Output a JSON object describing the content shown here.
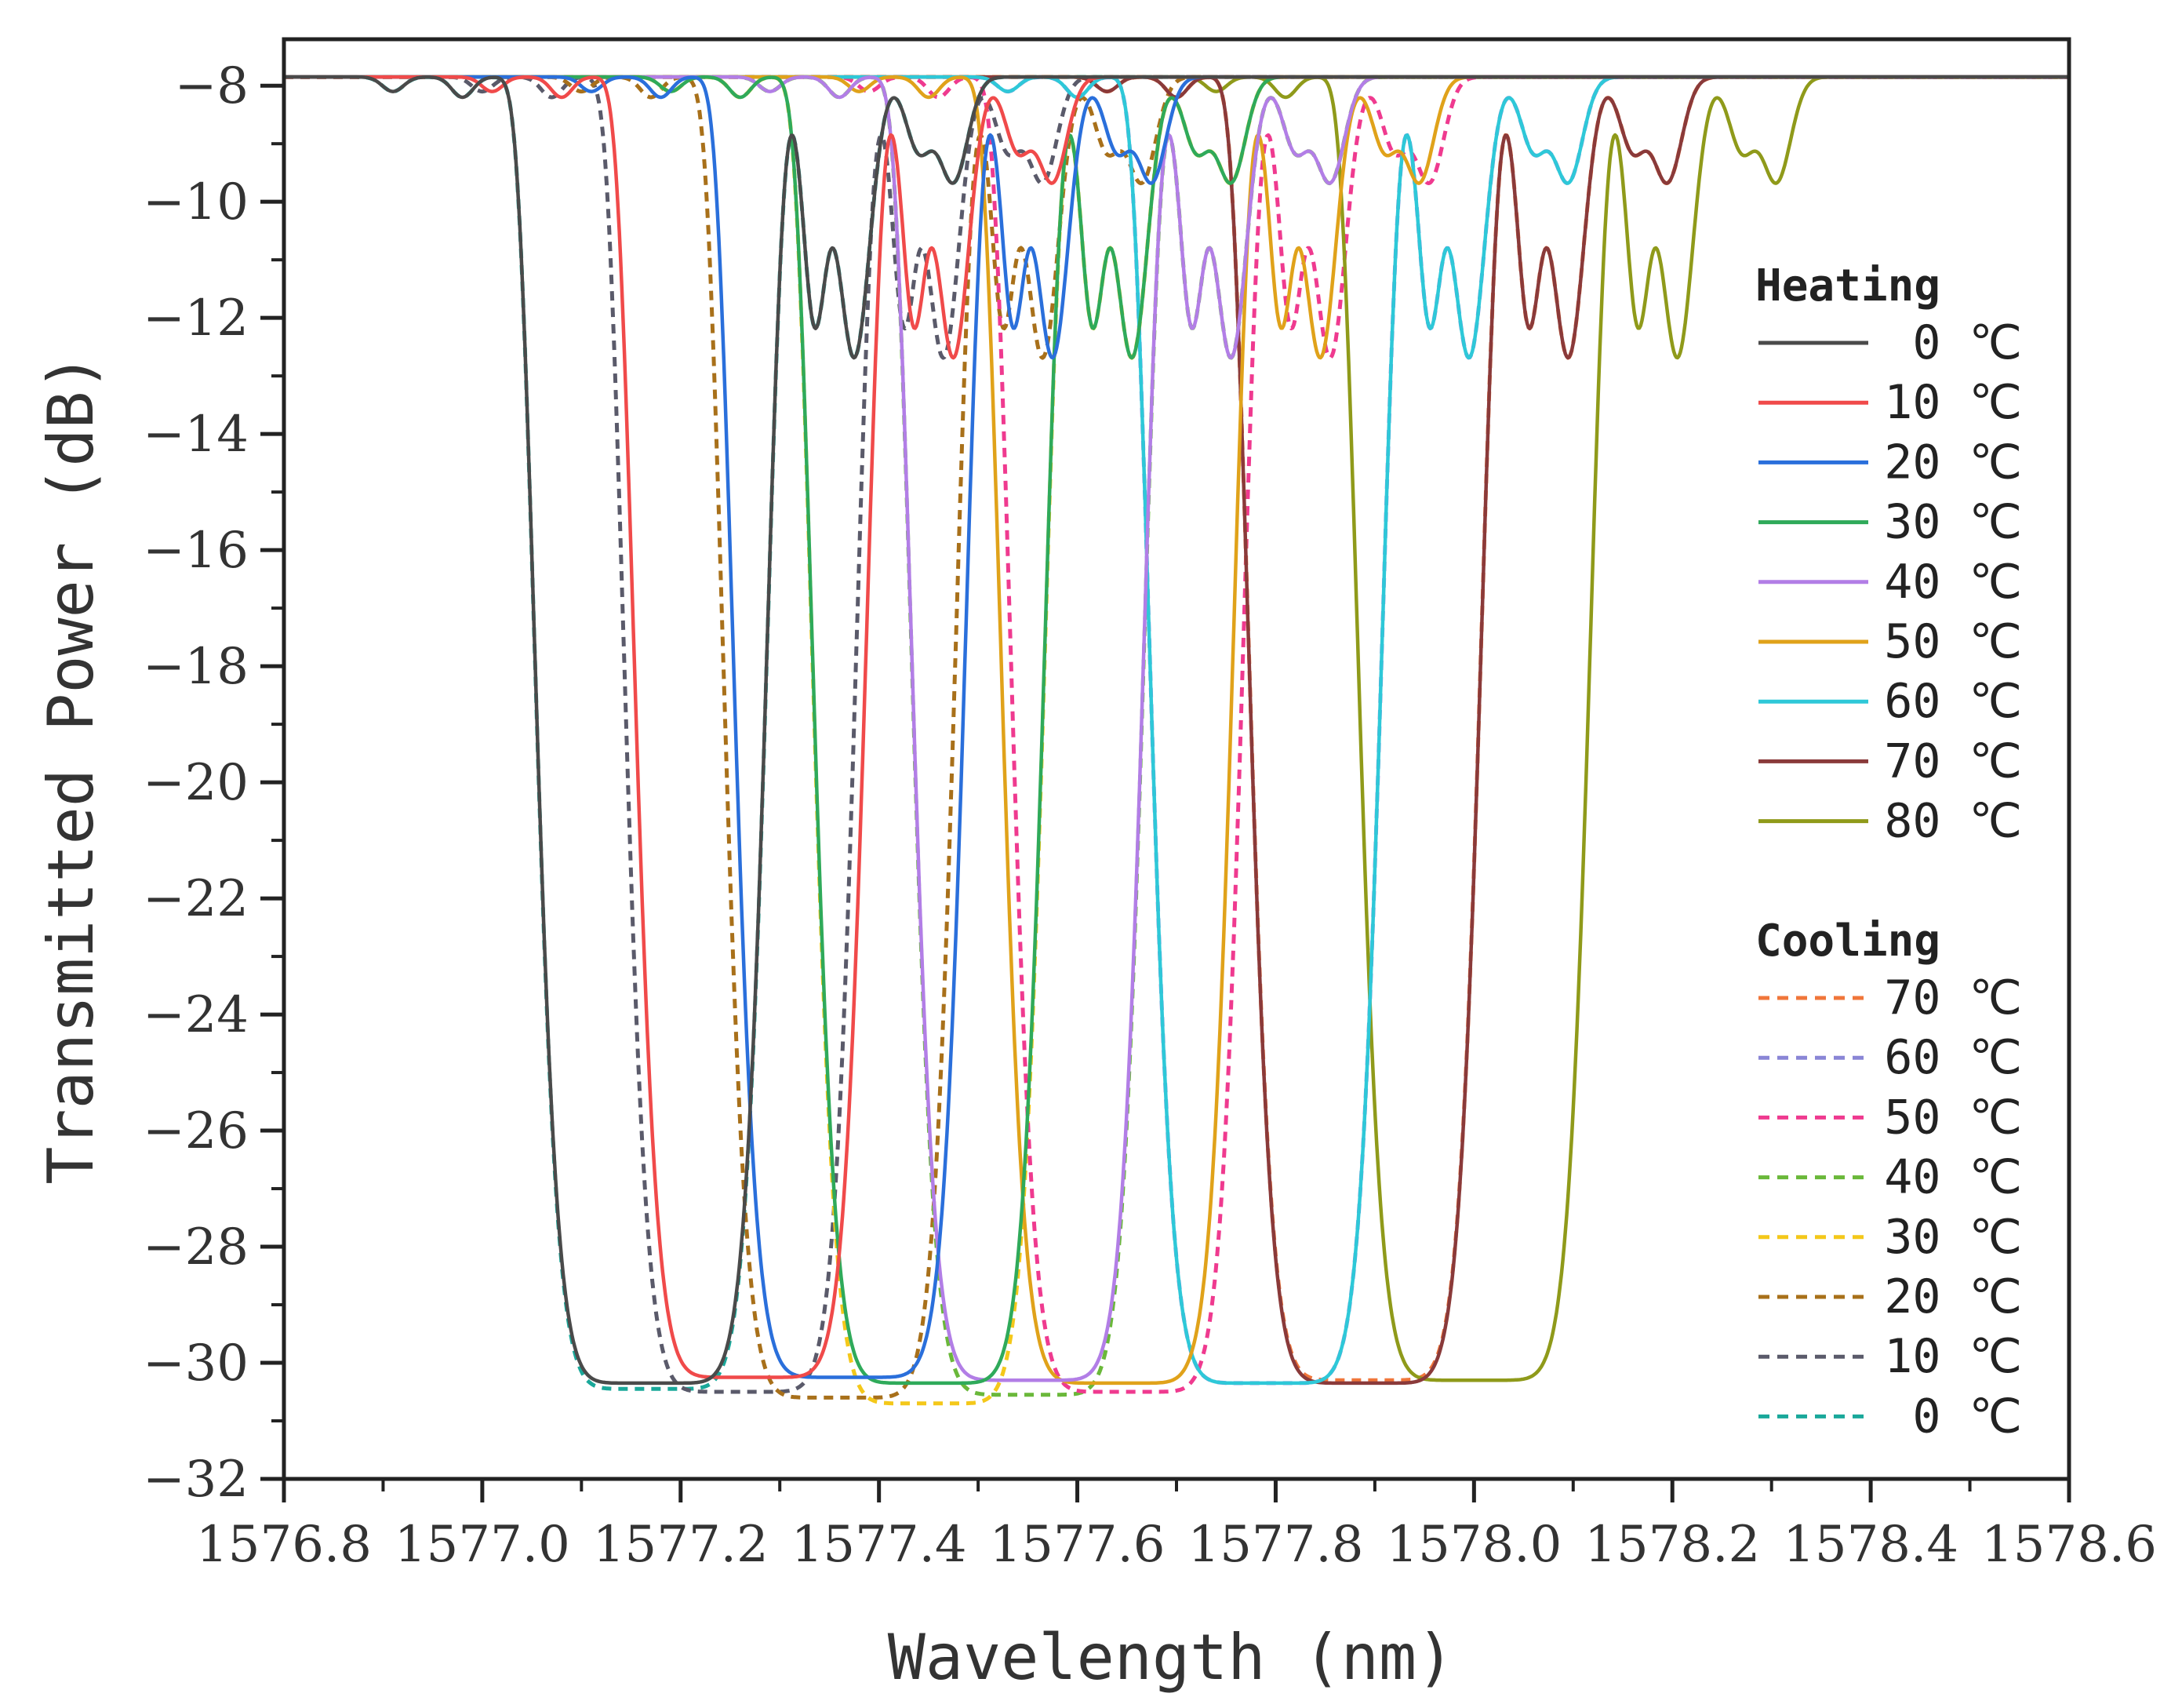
{
  "chart_data": {
    "type": "line",
    "title": "",
    "xlabel": "Wavelength (nm)",
    "ylabel": "Transmitted Power (dB)",
    "xlim": [
      1576.8,
      1578.6
    ],
    "ylim": [
      -32,
      -7.2
    ],
    "x_ticks": [
      1576.8,
      1577.0,
      1577.2,
      1577.4,
      1577.6,
      1577.8,
      1578.0,
      1578.2,
      1578.4,
      1578.6
    ],
    "x_tick_labels": [
      "1576.8",
      "1577.0",
      "1577.2",
      "1577.4",
      "1577.6",
      "1577.8",
      "1578.0",
      "1578.2",
      "1578.4",
      "1578.6"
    ],
    "y_ticks": [
      -8,
      -10,
      -12,
      -14,
      -16,
      -18,
      -20,
      -22,
      -24,
      -26,
      -28,
      -30,
      -32
    ],
    "y_tick_labels": [
      "−8",
      "−10",
      "−12",
      "−14",
      "−16",
      "−18",
      "−20",
      "−22",
      "−24",
      "−26",
      "−28",
      "−30",
      "−32"
    ],
    "baseline_db": -7.85,
    "dip_depth_db": -30.3,
    "sidelobe_peak_db": -13.6,
    "legend": {
      "heating_title": "Heating",
      "cooling_title": "Cooling",
      "placement": "right"
    },
    "series": [
      {
        "name": "0 ℃",
        "group": "Heating",
        "style": "solid",
        "color": "#4a4a4a",
        "center_nm": 1577.17,
        "min_db": -30.35
      },
      {
        "name": "10 ℃",
        "group": "Heating",
        "style": "solid",
        "color": "#f04a4a",
        "center_nm": 1577.27,
        "min_db": -30.25
      },
      {
        "name": "20 ℃",
        "group": "Heating",
        "style": "solid",
        "color": "#2a6fdb",
        "center_nm": 1577.37,
        "min_db": -30.25
      },
      {
        "name": "30 ℃",
        "group": "Heating",
        "style": "solid",
        "color": "#2faa5a",
        "center_nm": 1577.45,
        "min_db": -30.35
      },
      {
        "name": "40 ℃",
        "group": "Heating",
        "style": "solid",
        "color": "#b27ee6",
        "center_nm": 1577.55,
        "min_db": -30.3
      },
      {
        "name": "50 ℃",
        "group": "Heating",
        "style": "solid",
        "color": "#e0a21a",
        "center_nm": 1577.64,
        "min_db": -30.35
      },
      {
        "name": "60 ℃",
        "group": "Heating",
        "style": "solid",
        "color": "#2ec8d8",
        "center_nm": 1577.79,
        "min_db": -30.35
      },
      {
        "name": "70 ℃",
        "group": "Heating",
        "style": "solid",
        "color": "#8a3a3a",
        "center_nm": 1577.89,
        "min_db": -30.35
      },
      {
        "name": "80 ℃",
        "group": "Heating",
        "style": "solid",
        "color": "#8f9a1a",
        "center_nm": 1578.0,
        "min_db": -30.3
      },
      {
        "name": "70 ℃",
        "group": "Cooling",
        "style": "dashed",
        "color": "#f0763a",
        "center_nm": 1577.89,
        "min_db": -30.3
      },
      {
        "name": "60 ℃",
        "group": "Cooling",
        "style": "dashed",
        "color": "#8a86d6",
        "center_nm": 1577.79,
        "min_db": -30.35
      },
      {
        "name": "50 ℃",
        "group": "Cooling",
        "style": "dashed",
        "color": "#ef3a8f",
        "center_nm": 1577.65,
        "min_db": -30.5
      },
      {
        "name": "40 ℃",
        "group": "Cooling",
        "style": "dashed",
        "color": "#6ab83a",
        "center_nm": 1577.55,
        "min_db": -30.55
      },
      {
        "name": "30 ℃",
        "group": "Cooling",
        "style": "dashed",
        "color": "#f4c81a",
        "center_nm": 1577.45,
        "min_db": -30.7
      },
      {
        "name": "20 ℃",
        "group": "Cooling",
        "style": "dashed",
        "color": "#a8701a",
        "center_nm": 1577.36,
        "min_db": -30.6
      },
      {
        "name": "10 ℃",
        "group": "Cooling",
        "style": "dashed",
        "color": "#5a5a6a",
        "center_nm": 1577.26,
        "min_db": -30.5
      },
      {
        "name": "0 ℃",
        "group": "Cooling",
        "style": "dashed",
        "color": "#1aa89a",
        "center_nm": 1577.17,
        "min_db": -30.45
      }
    ]
  }
}
